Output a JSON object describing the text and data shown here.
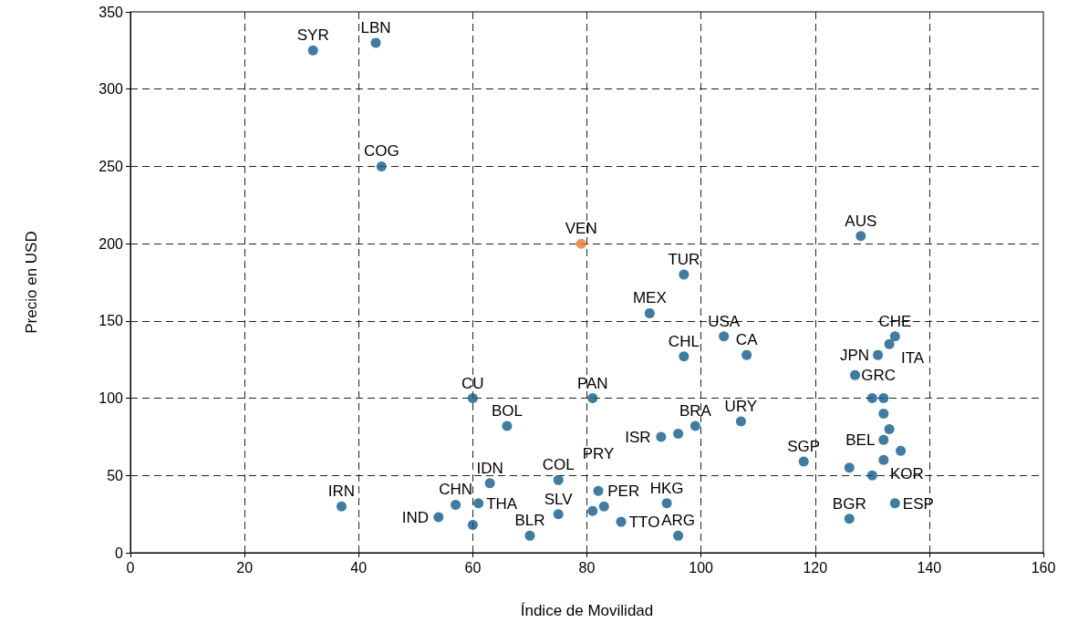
{
  "chart_data": {
    "type": "scatter",
    "xlabel": "Índice de Movilidad",
    "ylabel": "Precio en USD",
    "x": [
      32,
      43,
      44,
      79,
      128,
      97,
      91,
      104,
      108,
      97,
      134,
      133,
      131,
      127,
      60,
      81,
      66,
      130,
      132,
      132,
      133,
      132,
      135,
      132,
      126,
      130,
      134,
      126,
      118,
      107,
      99,
      96,
      93,
      94,
      96,
      86,
      83,
      82,
      81,
      75,
      75,
      70,
      63,
      61,
      57,
      54,
      60,
      37
    ],
    "values": [
      325,
      330,
      250,
      200,
      205,
      180,
      155,
      140,
      128,
      127,
      140,
      135,
      128,
      115,
      100,
      100,
      82,
      100,
      100,
      90,
      80,
      73,
      66,
      60,
      55,
      50,
      32,
      22,
      59,
      85,
      82,
      77,
      75,
      32,
      11,
      20,
      30,
      40,
      27,
      47,
      25,
      11,
      45,
      32,
      31,
      23,
      18,
      30
    ],
    "colors": [
      "#0f5b8c",
      "#0f5b8c",
      "#0f5b8c",
      "#ee7623",
      "#0f5b8c",
      "#0f5b8c",
      "#0f5b8c",
      "#0f5b8c",
      "#0f5b8c",
      "#0f5b8c",
      "#0f5b8c",
      "#0f5b8c",
      "#0f5b8c",
      "#0f5b8c",
      "#0f5b8c",
      "#0f5b8c",
      "#0f5b8c",
      "#0f5b8c",
      "#0f5b8c",
      "#0f5b8c",
      "#0f5b8c",
      "#0f5b8c",
      "#0f5b8c",
      "#0f5b8c",
      "#0f5b8c",
      "#0f5b8c",
      "#0f5b8c",
      "#0f5b8c",
      "#0f5b8c",
      "#0f5b8c",
      "#0f5b8c",
      "#0f5b8c",
      "#0f5b8c",
      "#0f5b8c",
      "#0f5b8c",
      "#0f5b8c",
      "#0f5b8c",
      "#0f5b8c",
      "#0f5b8c",
      "#0f5b8c",
      "#0f5b8c",
      "#0f5b8c",
      "#0f5b8c",
      "#0f5b8c",
      "#0f5b8c",
      "#0f5b8c",
      "#0f5b8c",
      "#0f5b8c"
    ],
    "xlim": [
      0,
      160
    ],
    "xticks": [
      0,
      20,
      40,
      60,
      80,
      100,
      120,
      140,
      160
    ],
    "ylim": [
      0,
      350
    ],
    "yticks": [
      0,
      50,
      100,
      150,
      200,
      250,
      300,
      350
    ],
    "grid": true,
    "marker": "circle",
    "annotations": [
      {
        "text": "SYR",
        "x": 32,
        "y": 325
      },
      {
        "text": "LBN",
        "x": 43,
        "y": 330
      },
      {
        "text": "COG",
        "x": 44,
        "y": 250
      },
      {
        "text": "VEN",
        "x": 79,
        "y": 200
      },
      {
        "text": "AUS",
        "x": 128,
        "y": 205
      },
      {
        "text": "TUR",
        "x": 97,
        "y": 180
      },
      {
        "text": "MEX",
        "x": 91,
        "y": 155
      },
      {
        "text": "USA",
        "x": 104,
        "y": 140
      },
      {
        "text": "CA",
        "x": 108,
        "y": 128
      },
      {
        "text": "CHL",
        "x": 97,
        "y": 127
      },
      {
        "text": "CHE",
        "x": 134,
        "y": 140
      },
      {
        "text": "ITA",
        "x": 133,
        "y": 135
      },
      {
        "text": "JPN",
        "x": 131,
        "y": 128
      },
      {
        "text": "GRC",
        "x": 127,
        "y": 115
      },
      {
        "text": "CU",
        "x": 60,
        "y": 100
      },
      {
        "text": "PAN",
        "x": 81,
        "y": 100
      },
      {
        "text": "BOL",
        "x": 66,
        "y": 82
      },
      {
        "text": "BEL",
        "x": 132,
        "y": 73
      },
      {
        "text": "KOR",
        "x": 132,
        "y": 60
      },
      {
        "text": "ESP",
        "x": 134,
        "y": 32
      },
      {
        "text": "BGR",
        "x": 126,
        "y": 22
      },
      {
        "text": "SGP",
        "x": 118,
        "y": 59
      },
      {
        "text": "URY",
        "x": 107,
        "y": 85
      },
      {
        "text": "BRA",
        "x": 99,
        "y": 82
      },
      {
        "text": "ISR",
        "x": 93,
        "y": 75
      },
      {
        "text": "HKG",
        "x": 94,
        "y": 32
      },
      {
        "text": "ARG",
        "x": 96,
        "y": 11
      },
      {
        "text": "TTO",
        "x": 86,
        "y": 20
      },
      {
        "text": "PER",
        "x": 83,
        "y": 30
      },
      {
        "text": "PRY",
        "x": 82,
        "y": 40
      },
      {
        "text": "COL",
        "x": 75,
        "y": 47
      },
      {
        "text": "SLV",
        "x": 75,
        "y": 25
      },
      {
        "text": "BLR",
        "x": 70,
        "y": 11
      },
      {
        "text": "IDN",
        "x": 63,
        "y": 45
      },
      {
        "text": "THA",
        "x": 61,
        "y": 32
      },
      {
        "text": "CHN",
        "x": 57,
        "y": 31
      },
      {
        "text": "IND",
        "x": 54,
        "y": 23
      },
      {
        "text": "IRN",
        "x": 37,
        "y": 30
      }
    ]
  }
}
